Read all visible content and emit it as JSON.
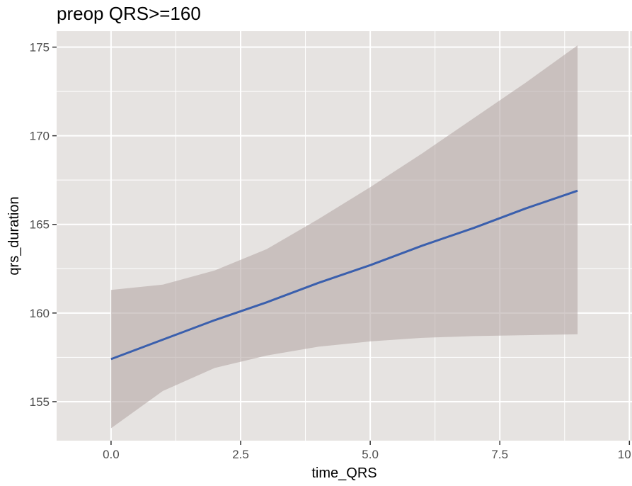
{
  "chart_data": {
    "type": "line",
    "title": "preop QRS>=160",
    "xlabel": "time_QRS",
    "ylabel": "qrs_duration",
    "xlim": [
      -1.05,
      10.05
    ],
    "ylim": [
      152.8,
      175.9
    ],
    "x_ticks": [
      0.0,
      2.5,
      5.0,
      7.5,
      10.0
    ],
    "x_tick_labels": [
      "0.0",
      "2.5",
      "5.0",
      "7.5",
      "10.0"
    ],
    "y_ticks": [
      155,
      160,
      165,
      170,
      175
    ],
    "y_tick_labels": [
      "155",
      "160",
      "165",
      "170",
      "175"
    ],
    "grid": true,
    "series": [
      {
        "color": "#3a5fad",
        "x": [
          0,
          1,
          2,
          3,
          4,
          5,
          6,
          7,
          8,
          9
        ],
        "y": [
          157.4,
          158.5,
          159.6,
          160.6,
          161.7,
          162.7,
          163.8,
          164.8,
          165.9,
          166.9
        ]
      }
    ],
    "confidence_band": {
      "color": "#b6a9a6",
      "x": [
        0,
        1,
        2,
        3,
        4,
        5,
        6,
        7,
        8,
        9
      ],
      "lower": [
        153.5,
        155.6,
        156.9,
        157.6,
        158.1,
        158.4,
        158.6,
        158.7,
        158.75,
        158.8
      ],
      "upper": [
        161.3,
        161.6,
        162.4,
        163.6,
        165.3,
        167.1,
        169.0,
        171.0,
        173.0,
        175.1
      ]
    },
    "panel_background": "#e6e3e1",
    "grid_color": "#ffffff"
  }
}
